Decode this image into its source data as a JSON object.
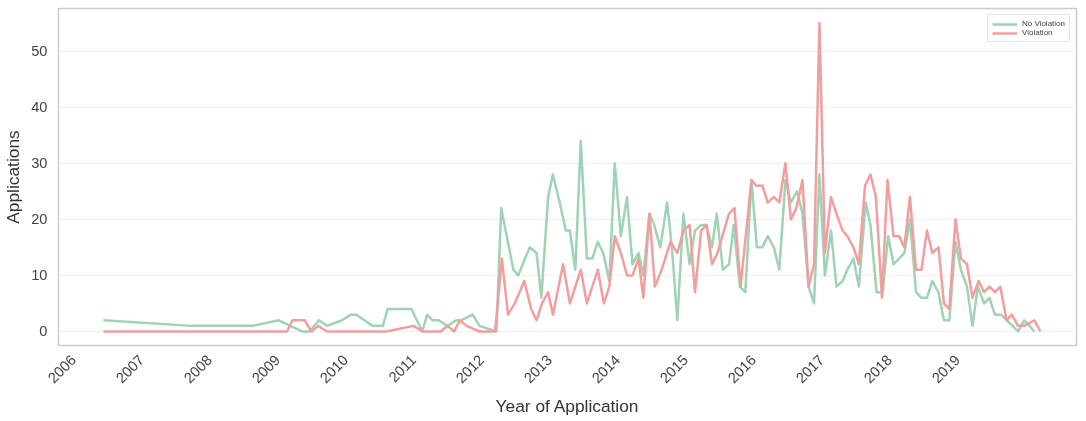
{
  "chart_data": {
    "type": "line",
    "xlabel": "Year of Application",
    "ylabel": "Applications",
    "xlim": [
      2005.78,
      2020.75
    ],
    "xticks": [
      2006,
      2007,
      2008,
      2009,
      2010,
      2011,
      2012,
      2013,
      2014,
      2015,
      2016,
      2017,
      2018,
      2019
    ],
    "ylim": [
      -2.5,
      57.6
    ],
    "yticks": [
      0,
      10,
      20,
      30,
      40,
      50
    ],
    "grid": "y",
    "legend": "top right",
    "line_style": "solid",
    "series": [
      {
        "name": "No Violation",
        "color": "#9fd3b4",
        "x": [
          2006.44,
          2007.74,
          2008.63,
          2009.02,
          2009.36,
          2009.47,
          2009.61,
          2009.73,
          2009.95,
          2010.08,
          2010.16,
          2010.4,
          2010.55,
          2010.62,
          2010.97,
          2011.13,
          2011.2,
          2011.28,
          2011.37,
          2011.5,
          2011.63,
          2011.7,
          2011.87,
          2011.97,
          2012.22,
          2012.29,
          2012.47,
          2012.54,
          2012.64,
          2012.71,
          2012.81,
          2012.88,
          2012.98,
          2013.05,
          2013.15,
          2013.24,
          2013.3,
          2013.38,
          2013.46,
          2013.55,
          2013.63,
          2013.71,
          2013.79,
          2013.88,
          2013.96,
          2014.05,
          2014.14,
          2014.22,
          2014.31,
          2014.38,
          2014.47,
          2014.54,
          2014.63,
          2014.73,
          2014.8,
          2014.88,
          2014.97,
          2015.06,
          2015.14,
          2015.23,
          2015.31,
          2015.39,
          2015.46,
          2015.55,
          2015.64,
          2015.71,
          2015.8,
          2015.88,
          2015.97,
          2016.05,
          2016.13,
          2016.21,
          2016.3,
          2016.38,
          2016.47,
          2016.55,
          2016.64,
          2016.72,
          2016.81,
          2016.89,
          2016.97,
          2017.05,
          2017.14,
          2017.22,
          2017.31,
          2017.38,
          2017.47,
          2017.55,
          2017.65,
          2017.72,
          2017.81,
          2017.9,
          2017.98,
          2018.06,
          2018.14,
          2018.22,
          2018.3,
          2018.39,
          2018.47,
          2018.55,
          2018.63,
          2018.72,
          2018.8,
          2018.88,
          2018.97,
          2019.05,
          2019.14,
          2019.22,
          2019.3,
          2019.39,
          2019.47,
          2019.55,
          2019.64,
          2019.73,
          2019.81,
          2019.89,
          2019.98,
          2020.06,
          2020.13
        ],
        "values": [
          2,
          1,
          1,
          2,
          0,
          0,
          2,
          1,
          2,
          3,
          3,
          1,
          1,
          4,
          4,
          0,
          3,
          2,
          2,
          1,
          2,
          2,
          3,
          1,
          0,
          22,
          11,
          10,
          13,
          15,
          14,
          6,
          24,
          28,
          23,
          18,
          18,
          11,
          34,
          13,
          13,
          16,
          14,
          9,
          30,
          17,
          24,
          12,
          14,
          10,
          21,
          19,
          15,
          23,
          15,
          2,
          21,
          12,
          18,
          19,
          19,
          15,
          21,
          11,
          12,
          19,
          8,
          7,
          27,
          15,
          15,
          17,
          15,
          11,
          27,
          23,
          25,
          21,
          8,
          5,
          28,
          10,
          18,
          8,
          9,
          11,
          13,
          8,
          23,
          19,
          7,
          7,
          17,
          12,
          13,
          14,
          20,
          7,
          6,
          6,
          9,
          7,
          2,
          2,
          16,
          11,
          8,
          1,
          8,
          5,
          6,
          3,
          3,
          2,
          1,
          0,
          2,
          1,
          0
        ]
      },
      {
        "name": "Violation",
        "color": "#f29e9e",
        "x": [
          2006.44,
          2009.14,
          2009.22,
          2009.4,
          2009.5,
          2009.6,
          2009.73,
          2010.6,
          2011.0,
          2011.13,
          2011.4,
          2011.5,
          2011.6,
          2011.68,
          2011.78,
          2011.97,
          2012.2,
          2012.3,
          2012.39,
          2012.49,
          2012.63,
          2012.73,
          2012.81,
          2012.89,
          2012.98,
          2013.05,
          2013.2,
          2013.3,
          2013.46,
          2013.55,
          2013.71,
          2013.8,
          2013.88,
          2013.96,
          2014.05,
          2014.14,
          2014.22,
          2014.31,
          2014.38,
          2014.47,
          2014.55,
          2014.65,
          2014.78,
          2014.88,
          2014.97,
          2015.06,
          2015.14,
          2015.23,
          2015.31,
          2015.39,
          2015.47,
          2015.64,
          2015.72,
          2015.81,
          2015.97,
          2016.04,
          2016.13,
          2016.21,
          2016.3,
          2016.38,
          2016.47,
          2016.55,
          2016.63,
          2016.72,
          2016.81,
          2016.89,
          2016.97,
          2017.05,
          2017.14,
          2017.22,
          2017.31,
          2017.38,
          2017.47,
          2017.55,
          2017.64,
          2017.72,
          2017.8,
          2017.89,
          2017.97,
          2018.06,
          2018.14,
          2018.22,
          2018.3,
          2018.39,
          2018.47,
          2018.55,
          2018.63,
          2018.72,
          2018.8,
          2018.88,
          2018.97,
          2019.05,
          2019.14,
          2019.22,
          2019.31,
          2019.39,
          2019.47,
          2019.55,
          2019.63,
          2019.72,
          2019.8,
          2019.89,
          2019.98,
          2020.13,
          2020.22
        ],
        "values": [
          0,
          0,
          2,
          2,
          0,
          1,
          0,
          0,
          1,
          0,
          0,
          1,
          0,
          2,
          1,
          0,
          0,
          13,
          3,
          5,
          9,
          4,
          2,
          5,
          7,
          3,
          12,
          5,
          11,
          5,
          11,
          5,
          8,
          17,
          14,
          10,
          10,
          13,
          6,
          21,
          8,
          11,
          16,
          14,
          18,
          19,
          7,
          18,
          19,
          12,
          14,
          21,
          22,
          8,
          27,
          26,
          26,
          23,
          24,
          23,
          30,
          20,
          22,
          27,
          8,
          12,
          55,
          14,
          24,
          21,
          18,
          17,
          15,
          12,
          26,
          28,
          24,
          6,
          27,
          17,
          17,
          15,
          24,
          11,
          11,
          18,
          14,
          15,
          5,
          4,
          20,
          13,
          12,
          6,
          9,
          7,
          8,
          7,
          8,
          2,
          3,
          1,
          1,
          2,
          0
        ]
      }
    ]
  }
}
